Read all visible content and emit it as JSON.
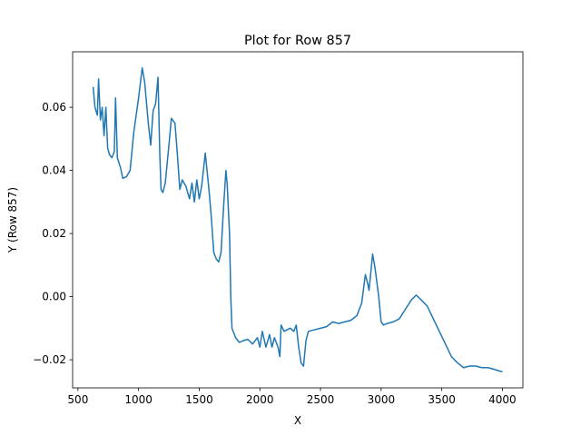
{
  "chart_data": {
    "type": "line",
    "title": "Plot for Row 857",
    "x_label": "X",
    "y_label": "Y (Row 857)",
    "color": "#1f77b4",
    "x": [
      625,
      640,
      660,
      670,
      685,
      700,
      715,
      730,
      745,
      760,
      780,
      800,
      810,
      825,
      850,
      870,
      900,
      930,
      960,
      1000,
      1030,
      1050,
      1080,
      1100,
      1120,
      1140,
      1160,
      1175,
      1185,
      1200,
      1220,
      1250,
      1270,
      1300,
      1320,
      1340,
      1360,
      1390,
      1420,
      1440,
      1460,
      1480,
      1500,
      1520,
      1550,
      1580,
      1600,
      1620,
      1640,
      1660,
      1680,
      1700,
      1720,
      1730,
      1750,
      1760,
      1770,
      1800,
      1830,
      1860,
      1900,
      1940,
      1980,
      2000,
      2020,
      2050,
      2080,
      2100,
      2120,
      2150,
      2165,
      2175,
      2200,
      2250,
      2280,
      2300,
      2320,
      2340,
      2360,
      2380,
      2400,
      2450,
      2500,
      2550,
      2600,
      2650,
      2700,
      2750,
      2800,
      2840,
      2870,
      2890,
      2900,
      2930,
      2950,
      2980,
      3000,
      3020,
      3050,
      3100,
      3150,
      3200,
      3250,
      3290,
      3330,
      3380,
      3430,
      3480,
      3530,
      3580,
      3630,
      3680,
      3730,
      3780,
      3830,
      3880,
      3930,
      3970,
      4000
    ],
    "values": [
      0.0665,
      0.06,
      0.0575,
      0.069,
      0.056,
      0.06,
      0.051,
      0.06,
      0.047,
      0.045,
      0.044,
      0.046,
      0.063,
      0.044,
      0.041,
      0.0375,
      0.038,
      0.04,
      0.052,
      0.063,
      0.0725,
      0.068,
      0.055,
      0.048,
      0.059,
      0.061,
      0.0695,
      0.045,
      0.034,
      0.033,
      0.036,
      0.048,
      0.0565,
      0.055,
      0.045,
      0.034,
      0.037,
      0.035,
      0.031,
      0.036,
      0.03,
      0.037,
      0.031,
      0.035,
      0.0455,
      0.034,
      0.025,
      0.014,
      0.012,
      0.011,
      0.014,
      0.028,
      0.04,
      0.036,
      0.02,
      0.0,
      -0.01,
      -0.013,
      -0.0145,
      -0.014,
      -0.0135,
      -0.015,
      -0.013,
      -0.016,
      -0.011,
      -0.016,
      -0.012,
      -0.016,
      -0.013,
      -0.016,
      -0.019,
      -0.009,
      -0.011,
      -0.01,
      -0.011,
      -0.009,
      -0.016,
      -0.021,
      -0.022,
      -0.014,
      -0.011,
      -0.0105,
      -0.01,
      -0.0095,
      -0.008,
      -0.0085,
      -0.008,
      -0.0075,
      -0.006,
      -0.002,
      0.007,
      0.004,
      0.002,
      0.0135,
      0.009,
      0.0,
      -0.008,
      -0.009,
      -0.0085,
      -0.008,
      -0.007,
      -0.004,
      -0.001,
      0.0005,
      -0.001,
      -0.003,
      -0.007,
      -0.011,
      -0.015,
      -0.019,
      -0.021,
      -0.0225,
      -0.022,
      -0.022,
      -0.0225,
      -0.0225,
      -0.023,
      -0.0235,
      -0.0238
    ],
    "xlim": [
      456,
      4169
    ],
    "ylim": [
      -0.0289,
      0.0776
    ],
    "xticks": [
      500,
      1000,
      1500,
      2000,
      2500,
      3000,
      3500,
      4000
    ],
    "yticks": [
      {
        "value": -0.02,
        "label": "−0.02"
      },
      {
        "value": 0,
        "label": "0.00"
      },
      {
        "value": 0.02,
        "label": "0.02"
      },
      {
        "value": 0.04,
        "label": "0.04"
      },
      {
        "value": 0.06,
        "label": "0.06"
      }
    ]
  }
}
